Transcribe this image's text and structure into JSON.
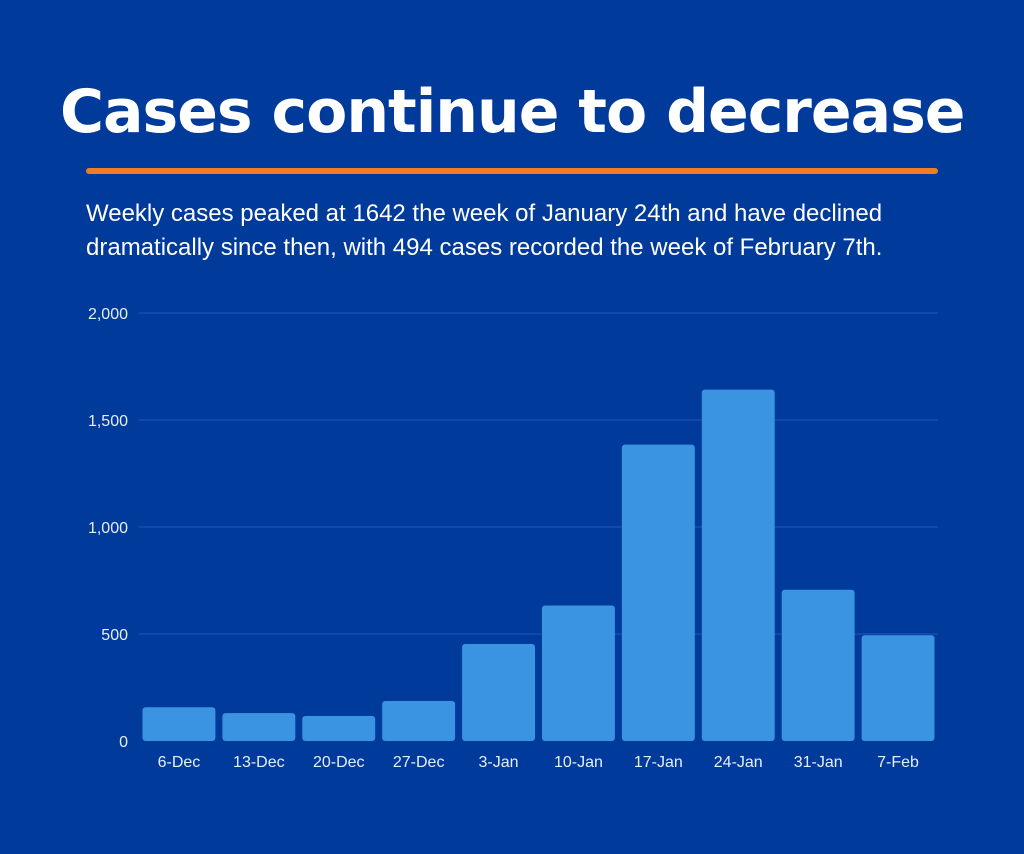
{
  "header": {
    "title": "Cases continue to decrease",
    "subtitle": "Weekly cases peaked at 1642 the week of January 24th and have declined dramatically since then, with 494 cases recorded the week of February 7th."
  },
  "colors": {
    "background": "#003a9b",
    "accent_line": "#f47c20",
    "bar": "#3a94e2",
    "gridline": "#2458b5"
  },
  "chart_data": {
    "type": "bar",
    "title": "",
    "xlabel": "",
    "ylabel": "",
    "categories": [
      "6-Dec",
      "13-Dec",
      "20-Dec",
      "27-Dec",
      "3-Jan",
      "10-Jan",
      "17-Jan",
      "24-Jan",
      "31-Jan",
      "7-Feb"
    ],
    "values": [
      158,
      130,
      117,
      187,
      453,
      633,
      1385,
      1642,
      707,
      494
    ],
    "ylim": [
      0,
      2000
    ],
    "yticks": [
      0,
      500,
      1000,
      1500,
      2000
    ],
    "ytick_labels": [
      "0",
      "500",
      "1,000",
      "1,500",
      "2,000"
    ],
    "grid": true,
    "legend": "none"
  }
}
